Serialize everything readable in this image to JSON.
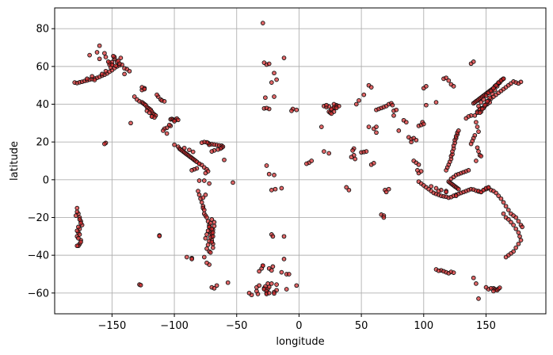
{
  "chart_data": {
    "type": "scatter",
    "title": "",
    "xlabel": "longitude",
    "ylabel": "latitude",
    "xlim": [
      -196,
      198
    ],
    "ylim": [
      -71,
      91
    ],
    "xticks": [
      -150,
      -100,
      -50,
      0,
      50,
      100,
      150
    ],
    "yticks": [
      -60,
      -40,
      -20,
      0,
      20,
      40,
      60,
      80
    ],
    "grid": true,
    "marker_color": "#d62728",
    "marker_edge": "#111111",
    "marker_alpha": 0.7,
    "series": [
      {
        "x": [
          -180,
          -178,
          -176,
          -174,
          -172,
          -170,
          -168,
          -166,
          -164,
          -162,
          -160,
          -158,
          -156,
          -154,
          -152,
          -150,
          -148,
          -146,
          -144,
          -142,
          -162,
          -160,
          -156,
          -152,
          -148,
          -146,
          -150,
          -144,
          -140,
          -138,
          -136,
          -170,
          -166,
          -164,
          -158,
          -148,
          -152,
          -150,
          -147,
          -145,
          -143,
          -153,
          -151,
          -149,
          -155,
          -150,
          -178,
          -177,
          -176,
          -175,
          -174,
          -176,
          -177,
          -178,
          -175,
          -176,
          -177,
          -178,
          -179,
          -176,
          -175,
          -177,
          -178,
          -176,
          -177,
          -175,
          -178,
          -155,
          -156,
          -128,
          -127,
          -112,
          -112,
          -135,
          -132,
          -130,
          -128,
          -126,
          -125,
          -124,
          -123,
          -122,
          -121,
          -120,
          -119,
          -118,
          -117,
          -116,
          -115,
          -122,
          -120,
          -118,
          -116,
          -126,
          -124,
          -113,
          -111,
          -110,
          -108,
          -114,
          -118,
          -103,
          -102,
          -101,
          -100,
          -99,
          -98,
          -97,
          -100,
          -103,
          -106,
          -108,
          -109,
          -106,
          -104,
          -100,
          -97,
          -96,
          -95,
          -94,
          -93,
          -92,
          -91,
          -90,
          -89,
          -88,
          -87,
          -86,
          -85,
          -84,
          -83,
          -92,
          -88,
          -85,
          -82,
          -80,
          -78,
          -76,
          -74,
          -73,
          -75,
          -72,
          -70,
          -68,
          -66,
          -64,
          -62,
          -61,
          -62,
          -63,
          -65,
          -68,
          -70,
          -72,
          -73,
          -74,
          -76,
          -78,
          -80,
          -82,
          -84,
          -86,
          -76,
          -72,
          -60,
          -81,
          -80,
          -79,
          -78,
          -77,
          -77,
          -76,
          -76,
          -75,
          -74,
          -73,
          -72,
          -72,
          -71,
          -71,
          -70,
          -70,
          -69,
          -69,
          -70,
          -71,
          -72,
          -73,
          -74,
          -75,
          -68,
          -68,
          -69,
          -70,
          -71,
          -72,
          -73,
          -74,
          -72,
          -71,
          -70,
          -69,
          -69,
          -70,
          -86,
          -76,
          -70,
          -68,
          -72,
          -74,
          -66,
          -57,
          -90,
          -86,
          -75,
          -77,
          -80,
          -53,
          -38,
          -33,
          -34,
          -32,
          -34,
          -18,
          -20,
          -26,
          -28,
          -27,
          -25,
          -20,
          -29,
          -30,
          -32,
          -14,
          -10,
          -22,
          -21,
          -14,
          -19,
          -22,
          -28,
          -26,
          -24,
          -18,
          -25,
          -2,
          -5,
          -24,
          -27,
          -28,
          -26,
          -20,
          -12,
          -18,
          -20,
          -26,
          -24,
          -22,
          -29,
          -28,
          -26,
          -24,
          -20,
          -22,
          -6,
          20,
          22,
          24,
          25,
          26,
          28,
          30,
          29,
          30,
          28,
          26,
          24,
          22,
          44,
          43,
          44,
          42,
          45,
          40,
          38,
          50,
          52,
          54,
          58,
          60,
          56,
          62,
          64,
          66,
          68,
          70,
          72,
          74,
          75,
          76,
          78,
          66,
          68,
          68,
          69,
          70,
          72,
          60,
          62,
          76,
          84,
          86,
          88,
          90,
          80,
          90,
          92,
          94,
          96,
          92,
          94,
          96,
          95,
          98,
          102,
          110,
          116,
          118,
          120,
          122,
          124,
          100,
          102,
          96,
          98,
          99,
          100,
          96,
          98,
          100,
          102,
          104,
          106,
          108,
          110,
          112,
          114,
          116,
          118,
          120,
          122,
          124,
          126,
          128,
          130,
          132,
          134,
          136,
          138,
          140,
          142,
          144,
          146,
          148,
          150,
          152,
          106,
          110,
          114,
          118,
          118,
          119,
          120,
          121,
          122,
          122,
          123,
          123,
          124,
          124,
          125,
          125,
          126,
          126,
          127,
          127,
          128,
          120,
          121,
          122,
          123,
          124,
          125,
          126,
          127,
          128,
          122,
          124,
          126,
          128,
          130,
          132,
          134,
          136,
          140,
          141,
          142,
          143,
          144,
          145,
          146,
          147,
          148,
          149,
          150,
          151,
          152,
          153,
          154,
          155,
          156,
          157,
          158,
          159,
          160,
          161,
          162,
          163,
          164,
          143,
          145,
          147,
          149,
          151,
          153,
          141,
          143,
          145,
          138,
          136,
          134,
          142,
          143,
          144,
          141,
          140,
          139,
          138,
          143,
          144,
          145,
          146,
          142,
          138,
          140,
          144,
          146,
          148,
          150,
          152,
          154,
          156,
          158,
          160,
          162,
          164,
          166,
          168,
          170,
          172,
          174,
          176,
          178,
          179,
          164,
          166,
          168,
          170,
          172,
          174,
          176,
          177,
          178,
          176,
          174,
          172,
          170,
          168,
          166,
          146,
          148,
          150,
          152,
          154,
          156,
          158,
          160,
          162,
          164,
          166,
          168,
          170,
          172,
          145,
          147,
          149,
          151,
          153,
          155,
          157,
          159,
          161,
          163,
          144,
          146,
          148,
          150,
          152,
          154,
          156,
          158,
          160,
          162,
          164,
          174,
          176,
          178,
          156,
          157,
          158,
          159,
          160,
          161,
          156,
          152,
          150,
          114,
          116,
          118,
          120,
          122,
          124,
          110,
          112,
          140,
          142,
          154,
          144,
          118,
          126,
          112,
          -40,
          -29,
          -26,
          -24,
          -24,
          -22,
          -21,
          -12,
          -12,
          -10,
          -8,
          -2,
          32,
          30,
          28,
          28,
          26,
          18,
          20,
          24,
          8,
          10,
          6,
          46,
          48,
          52,
          56,
          58,
          62,
          -140,
          -160,
          -155,
          -168,
          -126,
          -124
        ],
        "y": [
          51.5,
          51.2,
          51.6,
          51.9,
          52.3,
          52.6,
          53.0,
          53.3,
          53.6,
          54.0,
          54.5,
          55.1,
          55.6,
          56.3,
          57.2,
          58.0,
          59.1,
          60.0,
          60.6,
          60.9,
          67.5,
          71.0,
          67.0,
          62.0,
          64.0,
          62.5,
          61.0,
          61.5,
          59.0,
          58.5,
          57.5,
          53.5,
          54.8,
          52.8,
          56.0,
          65.0,
          61.0,
          62.3,
          60.3,
          63.0,
          64.5,
          62.5,
          59.5,
          65.5,
          57.5,
          60.8,
          -15,
          -18,
          -20,
          -22,
          -24,
          -26,
          -28,
          -30,
          -32,
          -34,
          -35,
          -17,
          -19,
          -21,
          -23,
          -25,
          -27,
          -29,
          -31,
          -33,
          -35,
          19.5,
          19.0,
          -55.5,
          -55.8,
          -29.5,
          -29.8,
          30.0,
          44.0,
          42.5,
          41.5,
          41.0,
          40.5,
          40.0,
          39.5,
          38.5,
          38.0,
          37.5,
          37.0,
          36.0,
          35.0,
          34.5,
          34.0,
          36.5,
          35.5,
          33.5,
          33.0,
          47.5,
          48.5,
          44.0,
          42.5,
          42.0,
          41.5,
          45.0,
          33.5,
          32.0,
          32.2,
          31.9,
          31.6,
          31.8,
          32.4,
          31.7,
          31.0,
          28.5,
          27.5,
          27.0,
          26.0,
          24.5,
          29.0,
          18.5,
          17.5,
          16.5,
          16.0,
          15.5,
          15.0,
          14.5,
          14.0,
          13.5,
          13.0,
          12.5,
          12.0,
          11.5,
          11.0,
          10.5,
          10.0,
          16.8,
          15.8,
          14.8,
          9.5,
          8.5,
          7.8,
          6.5,
          5.5,
          4.5,
          3.5,
          19.0,
          18.8,
          18.6,
          18.4,
          18.2,
          18.0,
          17.5,
          17.0,
          16.5,
          16.0,
          15.5,
          15.0,
          18.5,
          19.5,
          19.8,
          20.0,
          19.6,
          8.5,
          6.0,
          5.5,
          5.0,
          -0.5,
          -2.0,
          10.5,
          -6.0,
          -8.0,
          -10.0,
          -12.0,
          -14.0,
          -15.0,
          -16.0,
          -18.0,
          -19.0,
          -20.0,
          -22.0,
          -24.0,
          -25.0,
          -26.0,
          -28.0,
          -30.0,
          -32.0,
          -34.0,
          -36.0,
          -21.0,
          -23.0,
          -25.0,
          -27.0,
          -29.0,
          -31.0,
          -22.5,
          -24.5,
          -26.5,
          -28.5,
          -30.5,
          -32.5,
          -34.5,
          -36.5,
          -38.0,
          -38.5,
          -33.0,
          -30.0,
          -28.0,
          -26.0,
          -41.5,
          -41.0,
          -57.0,
          -57.5,
          -45.0,
          -44.0,
          -56.0,
          -54.5,
          -41.0,
          -42.0,
          -8.0,
          -9.5,
          -0.5,
          -1.5,
          -61.0,
          -60.5,
          -57.0,
          -56.0,
          -59.0,
          -58.5,
          -59.5,
          -60.0,
          -57.5,
          -56.5,
          -57.8,
          -60.2,
          -45.5,
          -47.0,
          -48.5,
          -49.0,
          -50.0,
          -29.0,
          -30.0,
          -4.5,
          -5.0,
          -5.5,
          -58.0,
          -59.0,
          -56.8,
          -55.5,
          -55.0,
          37.0,
          37.5,
          37.5,
          43.5,
          37.8,
          38.0,
          44.0,
          64.5,
          53.0,
          56.5,
          61.0,
          61.4,
          51.5,
          83.0,
          62.0,
          7.5,
          3.0,
          2.5,
          -55.0,
          36.5,
          39.0,
          38.5,
          36.0,
          35.5,
          37.0,
          38.0,
          39.5,
          39.0,
          38.8,
          38.2,
          37.5,
          38.8,
          39.5,
          16.5,
          15.5,
          13.0,
          12.0,
          11.0,
          -5.5,
          -4.0,
          14.5,
          14.7,
          15.0,
          8.0,
          8.8,
          28.0,
          37.0,
          37.5,
          38.0,
          38.5,
          39.0,
          40.0,
          40.5,
          39.5,
          36.5,
          37.0,
          -18.5,
          -19.0,
          -20.0,
          -5.5,
          -6.5,
          -5.0,
          27.0,
          28.0,
          34.0,
          31.5,
          30.5,
          22.5,
          21.5,
          26.0,
          20.0,
          10.0,
          9.0,
          8.0,
          22.0,
          21.0,
          3.5,
          5.0,
          4.5,
          39.5,
          41.0,
          53.5,
          54.0,
          52.5,
          50.5,
          49.5,
          48.5,
          49.5,
          28.5,
          29.0,
          30.5,
          29.5,
          -1.0,
          -2.0,
          -3.0,
          -4.0,
          -5.0,
          -6.0,
          -7.0,
          -7.5,
          -8.0,
          -8.5,
          -8.8,
          -9.0,
          -9.5,
          -9.2,
          -8.5,
          -8.0,
          -7.5,
          -7.0,
          -6.5,
          -6.0,
          -5.5,
          -5.0,
          -5.2,
          -5.8,
          -6.2,
          -6.5,
          -5.5,
          -5.0,
          -4.5,
          -3.5,
          -4.5,
          -5.5,
          -6.0,
          5.0,
          6.5,
          8.0,
          9.5,
          11.0,
          12.5,
          13.5,
          15.0,
          16.5,
          18.0,
          19.5,
          21.0,
          22.0,
          23.0,
          24.0,
          25.0,
          26.0,
          -1.0,
          -1.5,
          -2.0,
          -2.5,
          -3.0,
          -3.5,
          -4.0,
          -4.5,
          -5.0,
          0.5,
          1.5,
          2.5,
          3.0,
          3.5,
          4.0,
          4.5,
          5.0,
          40.5,
          41.0,
          41.5,
          42.0,
          42.5,
          43.0,
          43.5,
          44.0,
          44.5,
          45.0,
          45.5,
          46.0,
          46.5,
          47.0,
          47.5,
          48.0,
          48.5,
          49.5,
          50.0,
          50.5,
          51.0,
          51.5,
          52.5,
          53.0,
          53.5,
          36.0,
          37.0,
          38.0,
          39.0,
          40.0,
          41.0,
          34.0,
          35.5,
          37.5,
          34.0,
          33.5,
          32.5,
          30.5,
          28.0,
          25.5,
          23.5,
          22.0,
          20.5,
          19.0,
          17.0,
          15.0,
          13.0,
          12.5,
          10.0,
          61.5,
          62.5,
          -6.0,
          -6.5,
          -5.5,
          -4.5,
          -4.0,
          -5.5,
          -6.0,
          -7.0,
          -8.5,
          -10.0,
          -12.0,
          -14.0,
          -16.0,
          -18.0,
          -19.0,
          -20.0,
          -22.0,
          -24.0,
          -25.0,
          -18.0,
          -20.0,
          -21.0,
          -22.5,
          -24.0,
          -26.0,
          -28.0,
          -30.0,
          -32.0,
          -34.0,
          -36.0,
          -38.0,
          -39.0,
          -40.0,
          -41.0,
          36.0,
          38.0,
          40.0,
          42.0,
          43.0,
          44.0,
          45.0,
          46.0,
          47.0,
          48.0,
          49.0,
          50.0,
          51.0,
          52.0,
          35.5,
          37.5,
          39.5,
          41.5,
          43.5,
          45.5,
          47.5,
          49.5,
          51.5,
          53.0,
          39.0,
          41.0,
          42.5,
          44.5,
          46.0,
          47.0,
          48.5,
          50.0,
          51.5,
          52.5,
          53.5,
          51.5,
          51.0,
          51.8,
          -57.5,
          -58.0,
          -58.2,
          -58.5,
          -57.8,
          -57.2,
          -59.0,
          -58.0,
          -57.0,
          -48.0,
          -48.5,
          -49.0,
          -49.5,
          -48.8,
          -49.2,
          -47.5,
          -48.2,
          -52.0,
          -55.0,
          -57.5,
          -63.0,
          -6.5,
          -8.5,
          -6.0,
          -60.0,
          -45.5,
          -60.5,
          -60.0,
          -47.0,
          -48.0,
          -46.0,
          -42.0,
          -30.0,
          -58.0,
          -50.0,
          -56.0,
          39.0,
          38.0,
          40.0,
          36.0,
          35.0,
          28.0,
          15.0,
          14.0,
          9.0,
          10.0,
          8.5,
          40.0,
          42.0,
          45.0,
          50.0,
          49.0,
          25.0,
          56.0,
          64.0,
          65.0,
          66.0,
          49.0,
          48.0
        ]
      }
    ]
  }
}
